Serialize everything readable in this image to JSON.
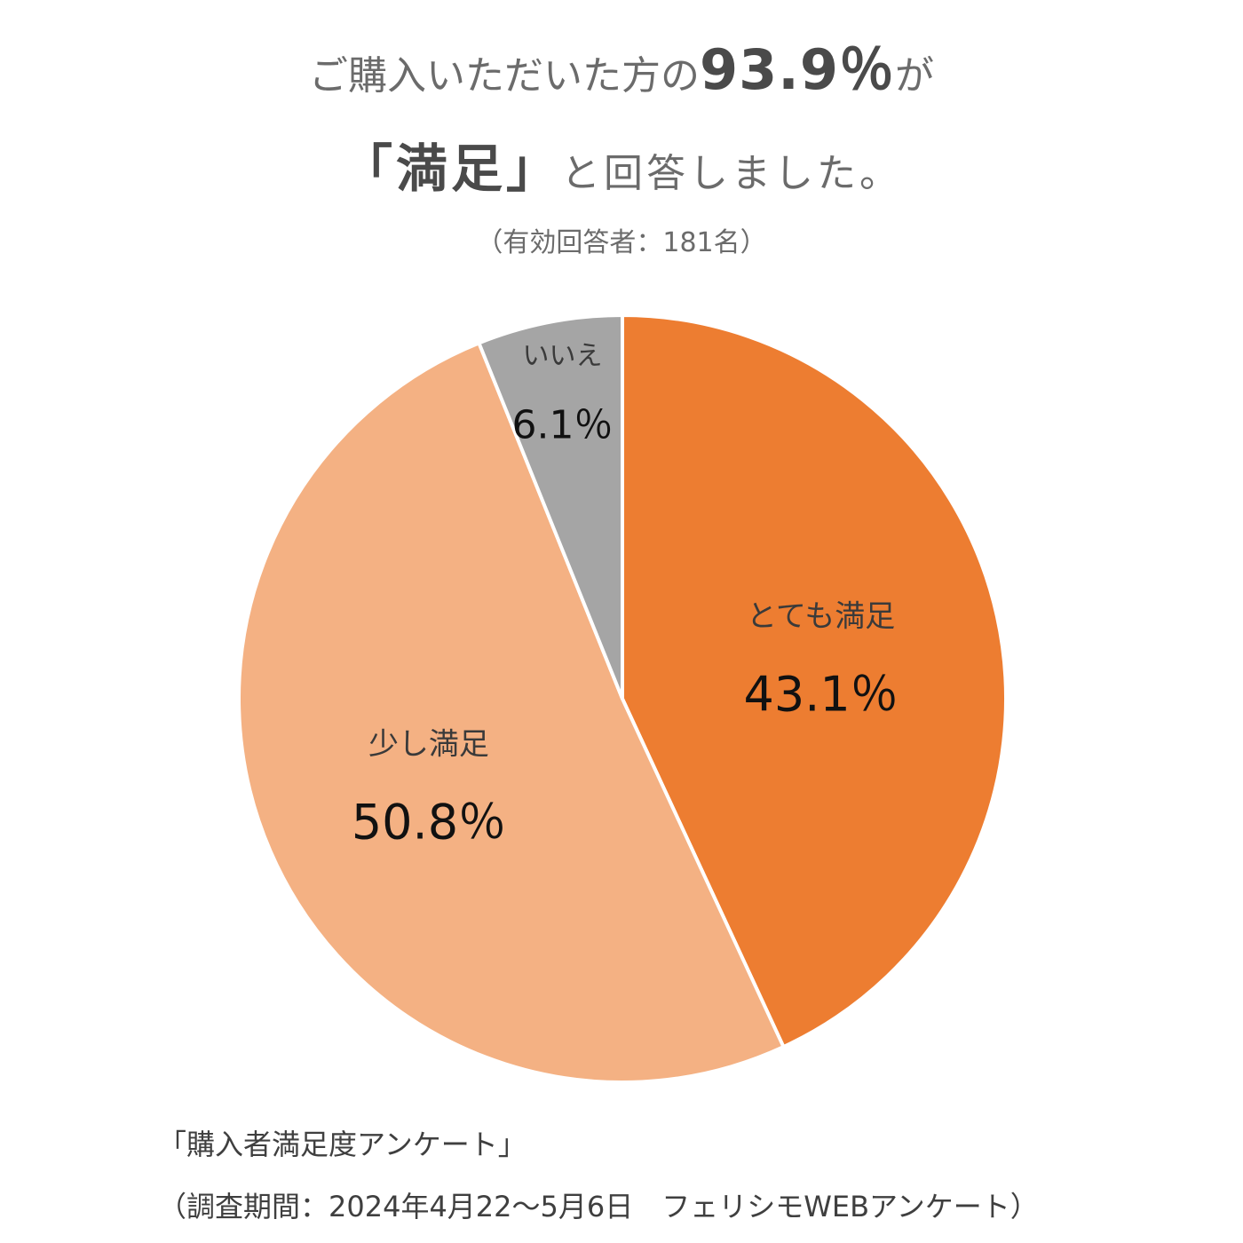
{
  "headline": {
    "line1_prefix": "ご購入いただいた方の",
    "line1_value": "93.9％",
    "line1_suffix": "が",
    "line2_quoted": "「満足」",
    "line2_rest": "と回答しました。",
    "respondents": "（有効回答者：181名）"
  },
  "chart_data": {
    "type": "pie",
    "start": "top",
    "direction": "clockwise",
    "slices": [
      {
        "label": "とても満足",
        "value": 43.1,
        "display": "43.1％",
        "color": "#ED7D31"
      },
      {
        "label": "少し満足",
        "value": 50.8,
        "display": "50.8％",
        "color": "#F4B183"
      },
      {
        "label": "いいえ",
        "value": 6.1,
        "display": "6.1％",
        "color": "#A5A5A5"
      }
    ]
  },
  "footer": {
    "survey_name": "「購入者満足度アンケート」",
    "survey_period": "（調査期間：2024年4月22〜5月6日　フェリシモWEBアンケート）"
  }
}
